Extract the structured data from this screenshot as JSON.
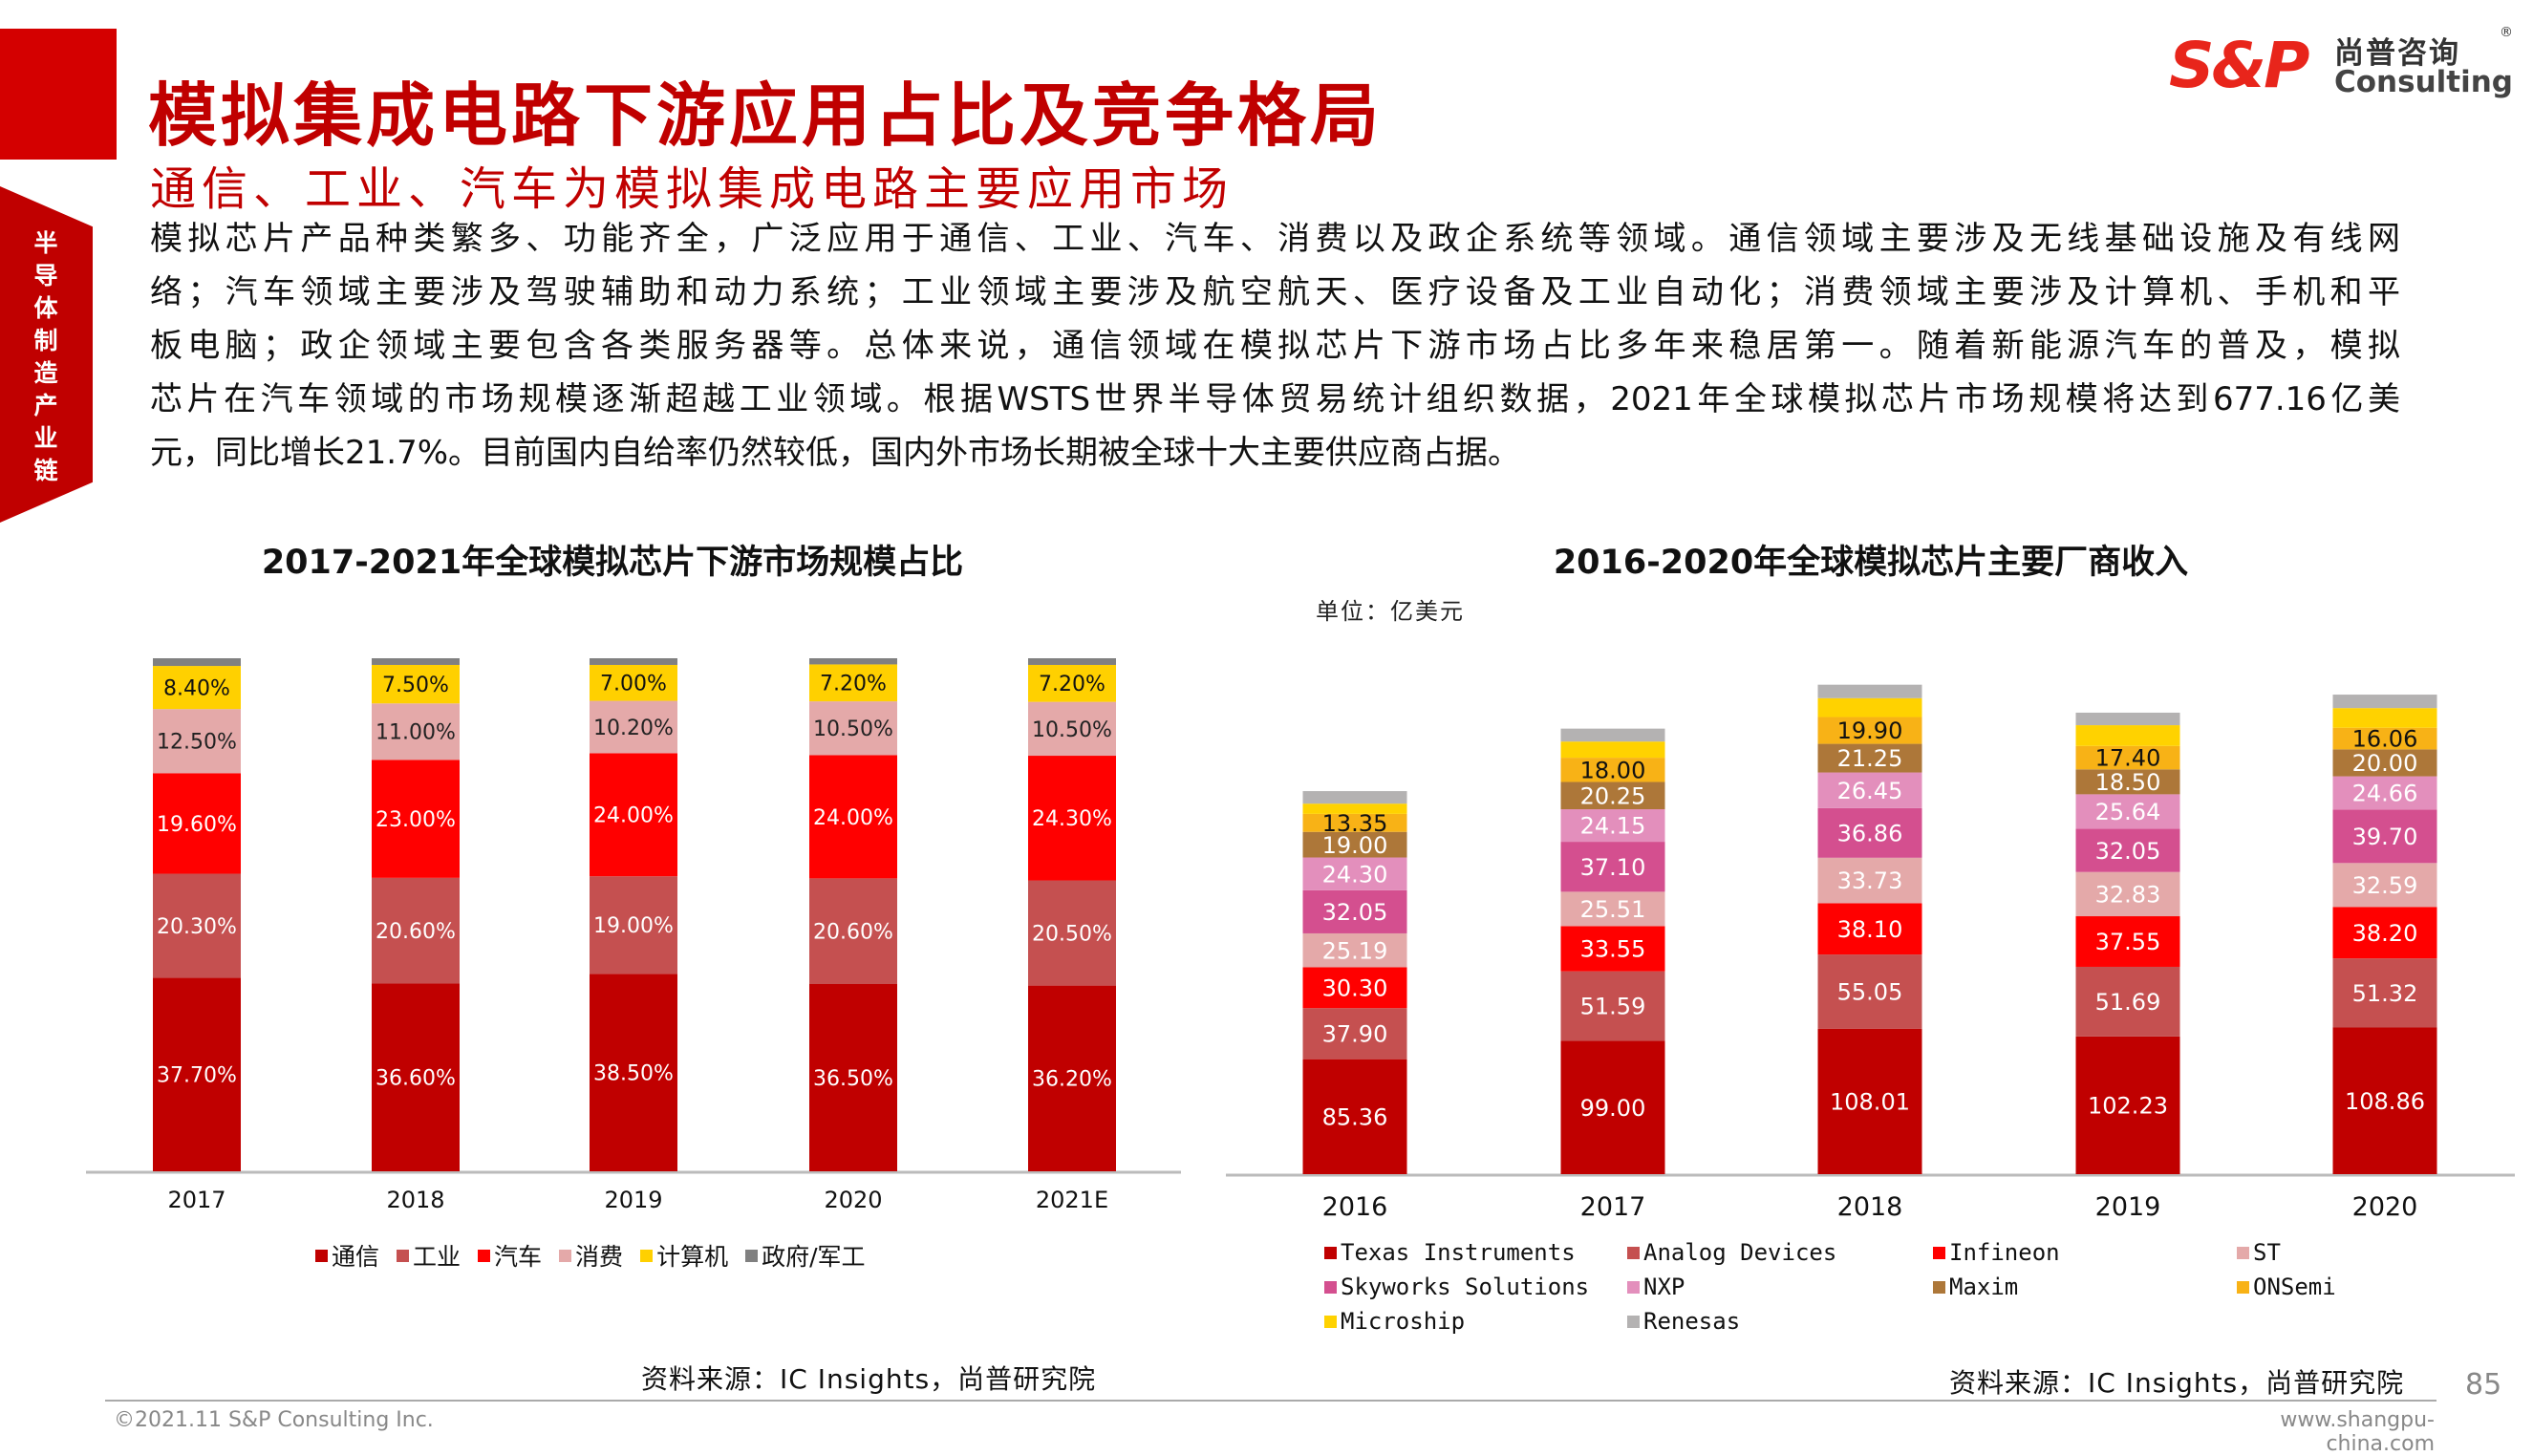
{
  "header": {
    "title": "模拟集成电路下游应用占比及竞争格局",
    "subtitle": "通信、工业、汽车为模拟集成电路主要应用市场",
    "side_tab": "半导体制造产业链",
    "logo": {
      "mark": "S&P",
      "cn": "尚普咨询",
      "en": "Consulting",
      "reg": "®"
    }
  },
  "body_lines": [
    "模拟芯片产品种类繁多、功能齐全，广泛应用于通信、工业、汽车、消费以及政企系统等领域。通信领域主要涉及无线基础设施及有线网",
    "络；汽车领域主要涉及驾驶辅助和动力系统；工业领域主要涉及航空航天、医疗设备及工业自动化；消费领域主要涉及计算机、手机和平",
    "板电脑；政企领域主要包含各类服务器等。总体来说，通信领域在模拟芯片下游市场占比多年来稳居第一。随着新能源汽车的普及，模拟",
    "芯片在汽车领域的市场规模逐渐超越工业领域。根据WSTS世界半导体贸易统计组织数据，2021年全球模拟芯片市场规模将达到677.16亿美",
    "元，同比增长21.7%。目前国内自给率仍然较低，国内外市场长期被全球十大主要供应商占据。"
  ],
  "chart_data": [
    {
      "type": "bar",
      "stacked": true,
      "title": "2017-2021年全球模拟芯片下游市场规模占比",
      "categories": [
        "2017",
        "2018",
        "2019",
        "2020",
        "2021E"
      ],
      "ylim": [
        0,
        100
      ],
      "unit": "%",
      "grid": false,
      "legend_position": "bottom",
      "series": [
        {
          "name": "通信",
          "color": "#C00000",
          "label_color": "#FFFFFF",
          "values": [
            37.7,
            36.6,
            38.5,
            36.5,
            36.2
          ],
          "labels": [
            "37.70%",
            "36.60%",
            "38.50%",
            "36.50%",
            "36.20%"
          ]
        },
        {
          "name": "工业",
          "color": "#C55050",
          "label_color": "#FFFFFF",
          "values": [
            20.3,
            20.6,
            19.0,
            20.6,
            20.5
          ],
          "labels": [
            "20.30%",
            "20.60%",
            "19.00%",
            "20.60%",
            "20.50%"
          ]
        },
        {
          "name": "汽车",
          "color": "#FF0000",
          "label_color": "#FFFFFF",
          "values": [
            19.6,
            23.0,
            24.0,
            24.0,
            24.3
          ],
          "labels": [
            "19.60%",
            "23.00%",
            "24.00%",
            "24.00%",
            "24.30%"
          ]
        },
        {
          "name": "消费",
          "color": "#E4A9A9",
          "label_color": "#222222",
          "values": [
            12.5,
            11.0,
            10.2,
            10.5,
            10.5
          ],
          "labels": [
            "12.50%",
            "11.00%",
            "10.20%",
            "10.50%",
            "10.50%"
          ]
        },
        {
          "name": "计算机",
          "color": "#FFD000",
          "label_color": "#111111",
          "values": [
            8.4,
            7.5,
            7.0,
            7.2,
            7.2
          ],
          "labels": [
            "8.40%",
            "7.50%",
            "7.00%",
            "7.20%",
            "7.20%"
          ]
        },
        {
          "name": "政府/军工",
          "color": "#808080",
          "label_color": "#FFFFFF",
          "values": [
            1.5,
            1.3,
            1.3,
            1.2,
            1.3
          ],
          "labels": [
            null,
            null,
            null,
            null,
            null
          ]
        }
      ],
      "source": "资料来源：IC Insights，尚普研究院"
    },
    {
      "type": "bar",
      "stacked": true,
      "title": "2016-2020年全球模拟芯片主要厂商收入",
      "unit_label": "单位：亿美元",
      "categories": [
        "2016",
        "2017",
        "2018",
        "2019",
        "2020"
      ],
      "grid": false,
      "legend_position": "bottom",
      "series": [
        {
          "name": "Texas Instruments",
          "color": "#C00000",
          "label_color": "#FFFFFF",
          "values": [
            85.36,
            99.0,
            108.01,
            102.23,
            108.86
          ],
          "labels": [
            "85.36",
            "99.00",
            "108.01",
            "102.23",
            "108.86"
          ]
        },
        {
          "name": "Analog Devices",
          "color": "#C55050",
          "label_color": "#FFFFFF",
          "values": [
            37.9,
            51.59,
            55.05,
            51.69,
            51.32
          ],
          "labels": [
            "37.90",
            "51.59",
            "55.05",
            "51.69",
            "51.32"
          ]
        },
        {
          "name": "Infineon",
          "color": "#FF0000",
          "label_color": "#FFFFFF",
          "values": [
            30.3,
            33.55,
            38.1,
            37.55,
            38.2
          ],
          "labels": [
            "30.30",
            "33.55",
            "38.10",
            "37.55",
            "38.20"
          ]
        },
        {
          "name": "ST",
          "color": "#E4A9A9",
          "label_color": "#FFFFFF",
          "values": [
            25.19,
            25.51,
            33.73,
            32.83,
            32.59
          ],
          "labels": [
            "25.19",
            "25.51",
            "33.73",
            "32.83",
            "32.59"
          ]
        },
        {
          "name": "Skyworks Solutions",
          "color": "#D44F8F",
          "label_color": "#FFFFFF",
          "values": [
            32.05,
            37.1,
            36.86,
            32.05,
            39.7
          ],
          "labels": [
            "32.05",
            "37.10",
            "36.86",
            "32.05",
            "39.70"
          ]
        },
        {
          "name": "NXP",
          "color": "#E38FBC",
          "label_color": "#FFFFFF",
          "values": [
            24.3,
            24.15,
            26.45,
            25.64,
            24.66
          ],
          "labels": [
            "24.30",
            "24.15",
            "26.45",
            "25.64",
            "24.66"
          ]
        },
        {
          "name": "Maxim",
          "color": "#AD7739",
          "label_color": "#FFFFFF",
          "values": [
            19.0,
            20.25,
            21.25,
            18.5,
            20.0
          ],
          "labels": [
            "19.00",
            "20.25",
            "21.25",
            "18.50",
            "20.00"
          ]
        },
        {
          "name": "ONSemi",
          "color": "#F8B216",
          "label_color": "#111111",
          "values": [
            13.35,
            18.0,
            19.9,
            17.4,
            16.06
          ],
          "labels": [
            "13.35",
            "18.00",
            "19.90",
            "17.40",
            "16.06"
          ]
        },
        {
          "name": "Microship",
          "color": "#FFD200",
          "label_color": "#111111",
          "values": [
            7.6,
            12,
            14,
            15.4,
            14.6
          ],
          "labels": [
            null,
            null,
            null,
            null,
            null
          ]
        },
        {
          "name": "Renesas",
          "color": "#B4B2B2",
          "label_color": "#111111",
          "values": [
            9.3,
            9.6,
            10,
            9.3,
            10
          ],
          "labels": [
            null,
            null,
            null,
            null,
            null
          ]
        }
      ],
      "source": "资料来源：IC Insights，尚普研究院"
    }
  ],
  "footer": {
    "page_number": "85",
    "copyright": "©2021.11  S&P Consulting Inc.",
    "website": "www.shangpu-china.com"
  }
}
